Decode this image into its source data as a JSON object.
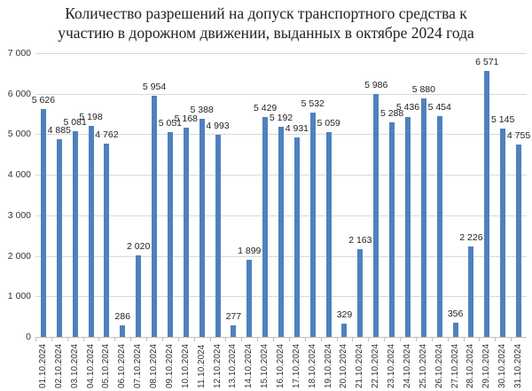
{
  "chart_data": {
    "type": "bar",
    "title": "Количество разрешений на допуск транспортного средства к участию в дорожном движении, выданных в октябре 2024 года",
    "title_lines": [
      "Количество разрешений на допуск транспортного средства к",
      "участию в дорожном движении, выданных в октябре 2024 года"
    ],
    "xlabel": "",
    "ylabel": "",
    "ylim": [
      0,
      7000
    ],
    "yticks": [
      "0",
      "1 000",
      "2 000",
      "3 000",
      "4 000",
      "5 000",
      "6 000",
      "7 000"
    ],
    "grid": true,
    "legend": null,
    "bar_color": "#4f81bd",
    "categories": [
      "01.10.2024",
      "02.10.2024",
      "03.10.2024",
      "04.10.2024",
      "05.10.2024",
      "06.10.2024",
      "07.10.2024",
      "08.10.2024",
      "09.10.2024",
      "10.10.2024",
      "11.10.2024",
      "12.10.2024",
      "13.10.2024",
      "14.10.2024",
      "15.10.2024",
      "16.10.2024",
      "17.10.2024",
      "18.10.2024",
      "19.10.2024",
      "20.10.2024",
      "21.10.2024",
      "22.10.2024",
      "23.10.2024",
      "24.10.2024",
      "25.10.2024",
      "26.10.2024",
      "27.10.2024",
      "28.10.2024",
      "29.10.2024",
      "30.10.2024",
      "31.10.2024"
    ],
    "values": [
      5626,
      4885,
      5081,
      5198,
      4762,
      286,
      2020,
      5954,
      5051,
      5168,
      5388,
      4993,
      277,
      1899,
      5429,
      5192,
      4931,
      5532,
      5059,
      329,
      2163,
      5986,
      5288,
      5436,
      5880,
      5454,
      356,
      2226,
      6571,
      5145,
      4755
    ],
    "value_labels": [
      "5 626",
      "4 885",
      "5 081",
      "5 198",
      "4 762",
      "286",
      "2 020",
      "5 954",
      "5 051",
      "5 168",
      "5 388",
      "4 993",
      "277",
      "1 899",
      "5 429",
      "5 192",
      "4 931",
      "5 532",
      "5 059",
      "329",
      "2 163",
      "5 986",
      "5 288",
      "5 436",
      "5 880",
      "5 454",
      "356",
      "2 226",
      "6 571",
      "5 145",
      "4 755"
    ]
  }
}
